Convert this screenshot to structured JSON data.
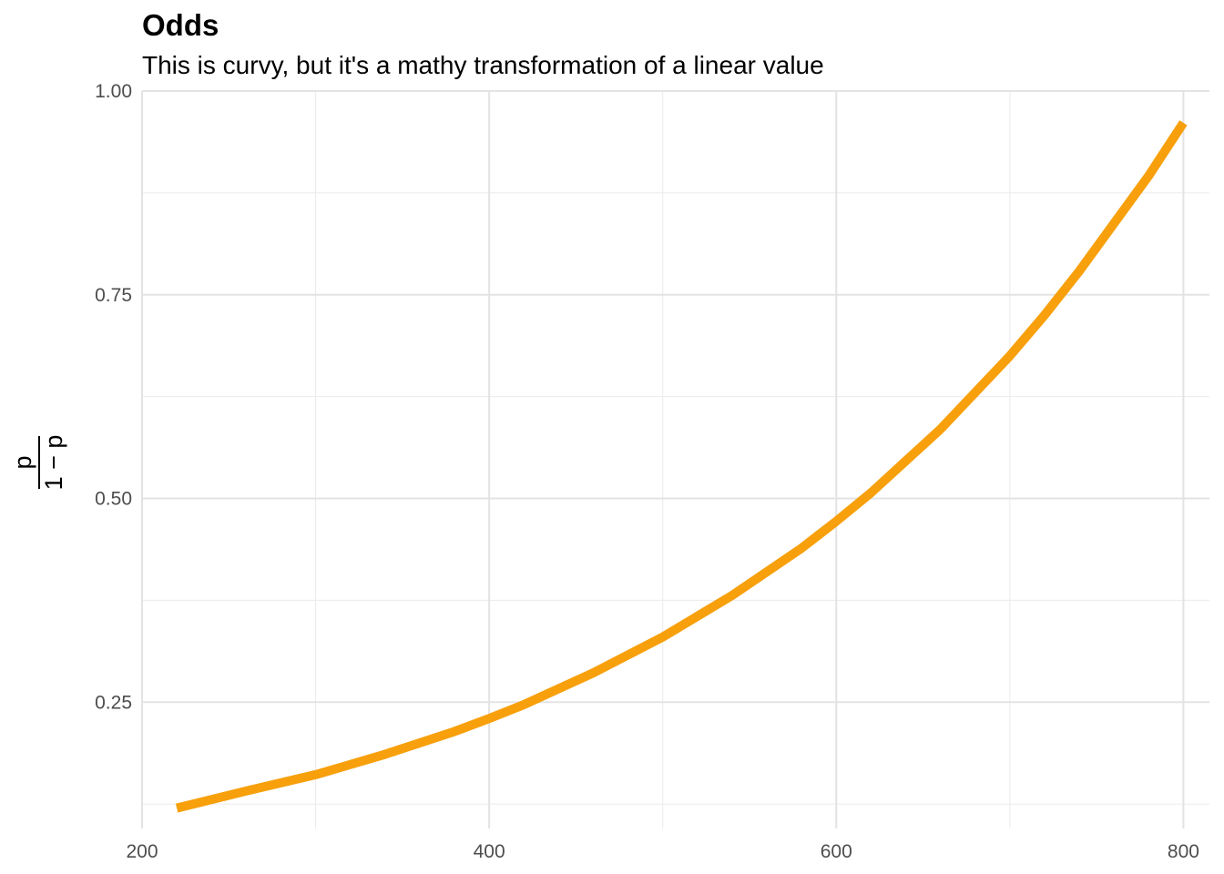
{
  "chart_data": {
    "type": "line",
    "title": "Odds",
    "subtitle": "This is curvy, but it's a mathy transformation of a linear value",
    "xlabel": "",
    "ylabel": {
      "numerator": "p",
      "denominator": "1 − p"
    },
    "xlim": [
      200,
      815
    ],
    "ylim": [
      0.095,
      1.0
    ],
    "x_ticks": [
      200,
      400,
      600,
      800
    ],
    "x_tick_labels": [
      "200",
      "400",
      "600",
      "800"
    ],
    "x_minor_ticks": [
      300,
      500,
      700
    ],
    "y_ticks": [
      0.25,
      0.5,
      0.75,
      1.0
    ],
    "y_tick_labels": [
      "0.25",
      "0.50",
      "0.75",
      "1.00"
    ],
    "y_minor_ticks": [
      0.125,
      0.375,
      0.625,
      0.875
    ],
    "grid": true,
    "series": [
      {
        "color": "#f7a00c",
        "x": [
          220,
          260,
          300,
          340,
          380,
          400,
          420,
          460,
          500,
          540,
          580,
          600,
          620,
          660,
          700,
          720,
          740,
          780,
          800
        ],
        "y": [
          0.12,
          0.141,
          0.161,
          0.186,
          0.214,
          0.23,
          0.247,
          0.286,
          0.33,
          0.381,
          0.439,
          0.472,
          0.507,
          0.585,
          0.675,
          0.725,
          0.779,
          0.896,
          0.961
        ]
      }
    ]
  }
}
